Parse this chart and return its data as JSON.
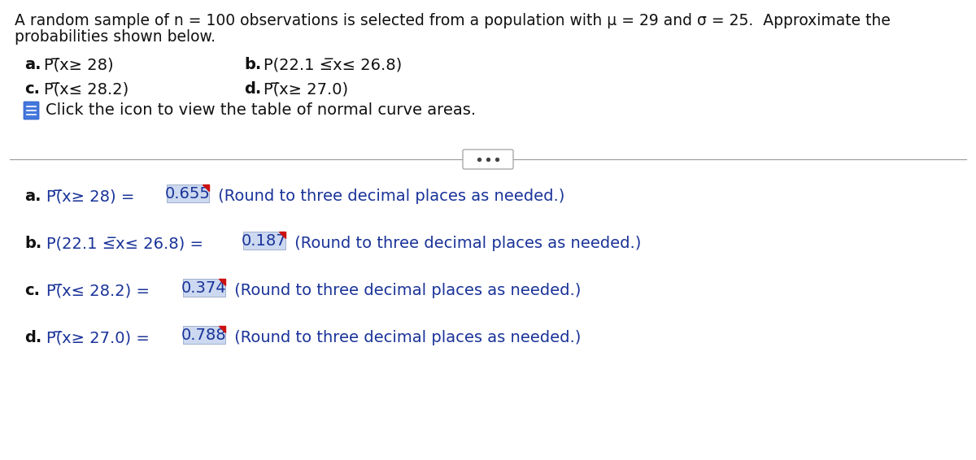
{
  "bg_color": "#ffffff",
  "title_line1": "A random sample of n = 100 observations is selected from a population with μ = 29 and σ = 25.  Approximate the",
  "title_line2": "probabilities shown below.",
  "qa_row1_left_label": "a.",
  "qa_row1_left_text": "P(̅x≥ 28)",
  "qa_row1_right_label": "b.",
  "qa_row1_right_text": "P(22.1 ≤̅x≤ 26.8)",
  "qa_row2_left_label": "c.",
  "qa_row2_left_text": "P(̅x≤ 28.2)",
  "qa_row2_right_label": "d.",
  "qa_row2_right_text": "P(̅x≥ 27.0)",
  "icon_text": "Click the icon to view the table of normal curve areas.",
  "answers": [
    {
      "label": "a.",
      "prefix": "P(̅x≥ 28) = ",
      "value": "0.655",
      "suffix": " (Round to three decimal places as needed.)"
    },
    {
      "label": "b.",
      "prefix": "P(22.1 ≤̅x≤ 26.8) = ",
      "value": "0.187",
      "suffix": " (Round to three decimal places as needed.)"
    },
    {
      "label": "c.",
      "prefix": "P(̅x≤ 28.2) = ",
      "value": "0.374",
      "suffix": " (Round to three decimal places as needed.)"
    },
    {
      "label": "d.",
      "prefix": "P(̅x≥ 27.0) = ",
      "value": "0.788",
      "suffix": " (Round to three decimal places as needed.)"
    }
  ],
  "answer_box_color": "#ccd9f0",
  "answer_text_color": "#1a3399",
  "question_text_color": "#1a3399",
  "body_text_color": "#111111",
  "separator_color": "#999999",
  "title_fontsize": 13.5,
  "body_fontsize": 14.0,
  "answer_fontsize": 14.0
}
